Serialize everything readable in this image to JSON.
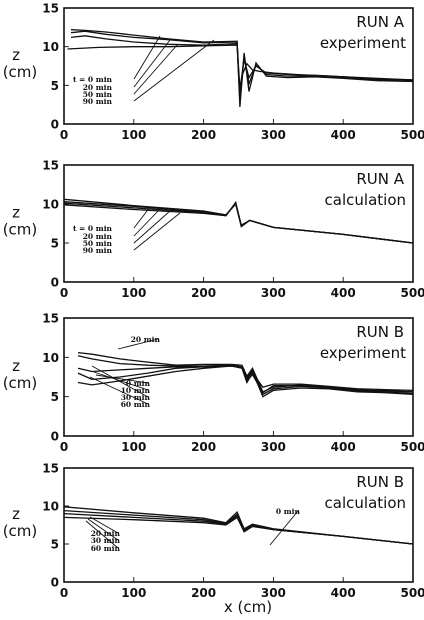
{
  "chart_data": [
    {
      "type": "line",
      "title_line1": "RUN A",
      "title_line2": "experiment",
      "ylabel_line1": "z",
      "ylabel_line2": "(cm)",
      "xlabel": "",
      "xlim": [
        0,
        500
      ],
      "ylim": [
        0,
        15
      ],
      "xticks": [
        "0",
        "100",
        "200",
        "300",
        "400",
        "500"
      ],
      "yticks": [
        "0",
        "5",
        "10",
        "15"
      ],
      "series": [
        {
          "name": "t = 0  min",
          "x": [
            5,
            50,
            100,
            150,
            200,
            248,
            252,
            256,
            262,
            270,
            280,
            300,
            350,
            400,
            450,
            500
          ],
          "y": [
            9.7,
            9.9,
            10.0,
            10.0,
            10.1,
            10.2,
            3.0,
            6.5,
            7.8,
            7.0,
            6.8,
            6.6,
            6.3,
            6.1,
            5.9,
            5.7
          ]
        },
        {
          "name": "20 min",
          "x": [
            10,
            30,
            60,
            100,
            150,
            200,
            248,
            252,
            258,
            265,
            275,
            290,
            320,
            360,
            400,
            450,
            500
          ],
          "y": [
            11.2,
            11.4,
            11.0,
            10.6,
            10.3,
            10.2,
            10.4,
            4.5,
            8.3,
            6.0,
            7.5,
            6.6,
            6.4,
            6.3,
            6.1,
            5.8,
            5.6
          ]
        },
        {
          "name": "50 min",
          "x": [
            10,
            30,
            60,
            100,
            150,
            200,
            248,
            252,
            258,
            265,
            275,
            290,
            320,
            360,
            400,
            450,
            500
          ],
          "y": [
            11.8,
            12.0,
            11.6,
            11.2,
            10.9,
            10.5,
            10.6,
            3.5,
            8.8,
            5.2,
            7.6,
            6.4,
            6.2,
            6.2,
            6.0,
            5.7,
            5.7
          ]
        },
        {
          "name": "90 min",
          "x": [
            10,
            30,
            60,
            100,
            150,
            200,
            248,
            252,
            258,
            265,
            275,
            290,
            320,
            360,
            400,
            450,
            500
          ],
          "y": [
            12.2,
            12.1,
            11.9,
            11.5,
            11.0,
            10.6,
            10.7,
            2.2,
            9.2,
            4.2,
            7.9,
            6.2,
            6.0,
            6.1,
            5.9,
            5.6,
            5.5
          ]
        }
      ],
      "labels": [
        "t = 0  min",
        "20 min",
        "50 min",
        "90 min"
      ]
    },
    {
      "type": "line",
      "title_line1": "RUN A",
      "title_line2": "calculation",
      "ylabel_line1": "z",
      "ylabel_line2": "(cm)",
      "xlabel": "",
      "xlim": [
        0,
        500
      ],
      "ylim": [
        0,
        15
      ],
      "xticks": [
        "0",
        "100",
        "200",
        "300",
        "400",
        "500"
      ],
      "yticks": [
        "0",
        "5",
        "10",
        "15"
      ],
      "series": [
        {
          "name": "t = 0  min",
          "x": [
            0,
            100,
            200,
            232,
            246,
            254,
            266,
            300,
            400,
            500
          ],
          "y": [
            9.9,
            9.3,
            8.8,
            8.5,
            10.2,
            7.2,
            7.9,
            7.0,
            6.1,
            5.0
          ]
        },
        {
          "name": "20 min",
          "x": [
            0,
            100,
            200,
            232,
            246,
            254,
            266,
            300,
            400,
            500
          ],
          "y": [
            10.1,
            9.5,
            8.9,
            8.5,
            10.1,
            7.3,
            7.9,
            7.0,
            6.1,
            5.0
          ]
        },
        {
          "name": "50 min",
          "x": [
            0,
            100,
            200,
            232,
            246,
            254,
            266,
            300,
            400,
            500
          ],
          "y": [
            10.3,
            9.7,
            9.0,
            8.6,
            10.0,
            7.2,
            7.9,
            7.0,
            6.1,
            5.0
          ]
        },
        {
          "name": "90 min",
          "x": [
            0,
            100,
            200,
            232,
            246,
            254,
            266,
            300,
            400,
            500
          ],
          "y": [
            10.6,
            9.8,
            9.1,
            8.6,
            10.0,
            7.1,
            7.9,
            7.0,
            6.1,
            5.0
          ]
        }
      ],
      "labels": [
        "t = 0  min",
        "20 min",
        "50 min",
        "90 min"
      ]
    },
    {
      "type": "line",
      "title_line1": "RUN B",
      "title_line2": "experiment",
      "ylabel_line1": "z",
      "ylabel_line2": "(cm)",
      "xlabel": "",
      "xlim": [
        0,
        500
      ],
      "ylim": [
        0,
        15
      ],
      "xticks": [
        "0",
        "100",
        "200",
        "300",
        "400",
        "500"
      ],
      "yticks": [
        "0",
        "5",
        "10",
        "15"
      ],
      "series": [
        {
          "name": "0 min",
          "x": [
            20,
            40,
            80,
            120,
            160,
            200,
            240,
            255,
            262,
            270,
            285,
            300,
            340,
            380,
            420,
            460,
            500
          ],
          "y": [
            8.0,
            7.2,
            7.5,
            8.0,
            8.6,
            8.8,
            8.9,
            8.6,
            6.8,
            8.0,
            6.2,
            6.6,
            6.6,
            6.3,
            6.0,
            5.9,
            5.8
          ]
        },
        {
          "name": "10 min",
          "x": [
            20,
            40,
            80,
            120,
            160,
            200,
            240,
            255,
            262,
            270,
            285,
            300,
            340,
            380,
            420,
            460,
            500
          ],
          "y": [
            6.8,
            6.5,
            7.0,
            7.6,
            8.2,
            8.6,
            8.9,
            8.7,
            7.0,
            7.8,
            5.5,
            6.4,
            6.4,
            6.2,
            5.8,
            5.8,
            5.6
          ]
        },
        {
          "name": "30 min",
          "x": [
            20,
            40,
            80,
            120,
            160,
            200,
            240,
            255,
            262,
            270,
            285,
            300,
            340,
            380,
            420,
            460,
            500
          ],
          "y": [
            10.2,
            9.8,
            9.2,
            9.0,
            8.9,
            8.9,
            9.0,
            8.8,
            7.4,
            8.4,
            5.3,
            6.0,
            6.3,
            6.1,
            5.7,
            5.6,
            5.4
          ]
        },
        {
          "name": "60 min",
          "x": [
            20,
            40,
            80,
            120,
            160,
            200,
            240,
            255,
            262,
            270,
            285,
            300,
            340,
            380,
            420,
            460,
            500
          ],
          "y": [
            8.6,
            8.2,
            8.4,
            8.6,
            8.8,
            8.8,
            8.9,
            8.7,
            7.2,
            8.2,
            5.0,
            5.8,
            6.1,
            6.0,
            5.6,
            5.5,
            5.3
          ]
        },
        {
          "name": "20 min",
          "x": [
            20,
            40,
            80,
            120,
            160,
            200,
            240,
            255,
            262,
            270,
            285,
            300,
            340,
            380,
            420,
            460,
            500
          ],
          "y": [
            10.6,
            10.4,
            9.8,
            9.4,
            9.0,
            9.1,
            9.1,
            9.0,
            7.6,
            8.6,
            5.6,
            6.2,
            6.5,
            6.2,
            5.9,
            5.7,
            5.6
          ]
        }
      ],
      "labels": [
        "20 min",
        "0 min",
        "10 min",
        "30 min",
        "60 min"
      ]
    },
    {
      "type": "line",
      "title_line1": "RUN B",
      "title_line2": "calculation",
      "ylabel_line1": "z",
      "ylabel_line2": "(cm)",
      "xlabel": "x (cm)",
      "xlim": [
        0,
        500
      ],
      "ylim": [
        0,
        15
      ],
      "xticks": [
        "0",
        "100",
        "200",
        "300",
        "400",
        "500"
      ],
      "yticks": [
        "0",
        "5",
        "10",
        "15"
      ],
      "series": [
        {
          "name": "0 min",
          "x": [
            0,
            100,
            200,
            232,
            248,
            258,
            270,
            300,
            400,
            500
          ],
          "y": [
            9.9,
            9.1,
            8.4,
            7.8,
            9.2,
            7.0,
            7.6,
            7.0,
            6.0,
            5.0
          ]
        },
        {
          "name": "20 min",
          "x": [
            0,
            100,
            200,
            232,
            248,
            258,
            270,
            300,
            400,
            500
          ],
          "y": [
            9.4,
            8.8,
            8.2,
            7.7,
            8.9,
            6.8,
            7.5,
            6.9,
            6.0,
            5.0
          ]
        },
        {
          "name": "30 min",
          "x": [
            0,
            100,
            200,
            232,
            248,
            258,
            270,
            300,
            400,
            500
          ],
          "y": [
            9.0,
            8.5,
            8.0,
            7.6,
            8.7,
            6.7,
            7.4,
            6.9,
            6.0,
            5.0
          ]
        },
        {
          "name": "60 min",
          "x": [
            0,
            100,
            200,
            232,
            248,
            258,
            270,
            300,
            400,
            500
          ],
          "y": [
            8.5,
            8.2,
            7.8,
            7.5,
            8.5,
            6.6,
            7.3,
            6.9,
            6.0,
            5.0
          ]
        }
      ],
      "labels": [
        "0 min",
        "20 min",
        "30 min",
        "60 min"
      ]
    }
  ]
}
